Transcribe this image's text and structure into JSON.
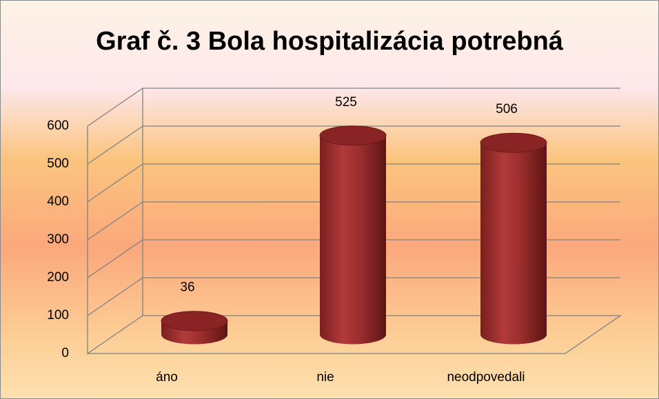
{
  "chart_data": {
    "type": "bar",
    "title": "Graf č. 3 Bola hospitalizácia potrebná",
    "categories": [
      "áno",
      "nie",
      "neodpovedali"
    ],
    "values": [
      36,
      525,
      506
    ],
    "color": "#a83232",
    "ylim": [
      0,
      600
    ],
    "yticks": [
      0,
      100,
      200,
      300,
      400,
      500,
      600
    ],
    "grid": true
  }
}
